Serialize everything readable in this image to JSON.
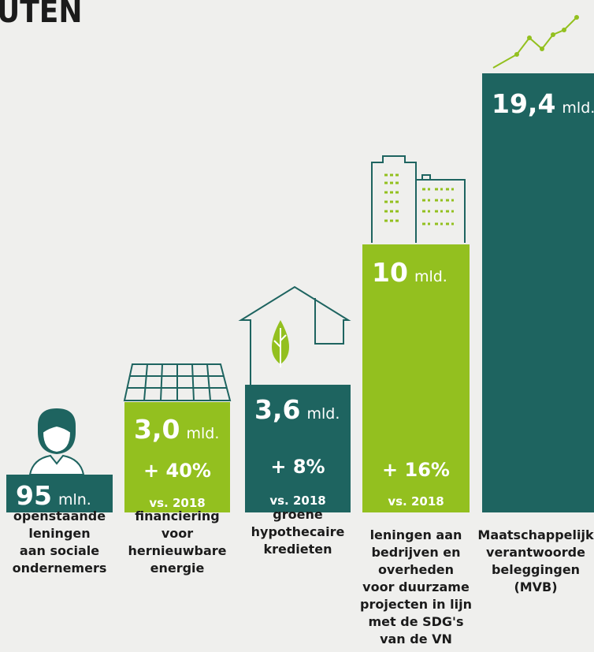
{
  "title": "UTEN",
  "items": [
    {
      "value": "95",
      "unit": "mln.",
      "label": [
        "openstaande",
        "leningen",
        "aan sociale",
        "ondernemers"
      ]
    },
    {
      "value": "3,0",
      "unit": "mld.",
      "change": "+ 40%",
      "compare": "vs. 2018",
      "label": [
        "financiering",
        "voor",
        "hernieuwbare",
        "energie"
      ]
    },
    {
      "value": "3,6",
      "unit": "mld.",
      "change": "+ 8%",
      "compare": "vs. 2018",
      "label": [
        "groene",
        "hypothecaire",
        "kredieten"
      ]
    },
    {
      "value": "10",
      "unit": "mld.",
      "change": "+ 16%",
      "compare": "vs. 2018",
      "label": [
        "leningen aan",
        "bedrijven en",
        "overheden",
        "voor duurzame",
        "projecten in lijn",
        "met de SDG's",
        "van de VN"
      ]
    },
    {
      "value": "19,4",
      "unit": "mld.",
      "label": [
        "Maatschappelijk",
        "verantwoorde",
        "beleggingen",
        "(MVB)"
      ]
    }
  ]
}
